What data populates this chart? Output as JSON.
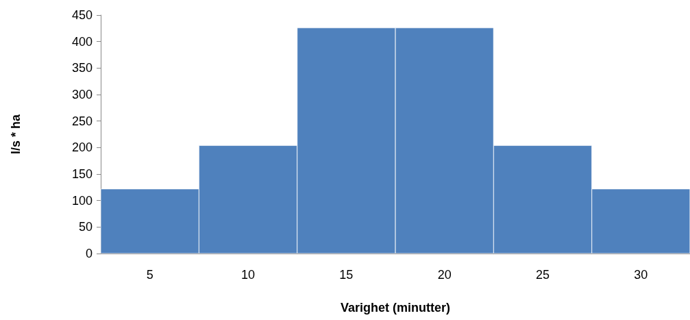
{
  "chart_data": {
    "type": "bar",
    "xlabel": "Varighet (minutter)",
    "ylabel": "l/s * ha",
    "categories": [
      "5",
      "10",
      "15",
      "20",
      "25",
      "30"
    ],
    "values": [
      122,
      204,
      426,
      426,
      204,
      122
    ],
    "color": "#4f81bd",
    "ylim": [
      0,
      450
    ],
    "yticks": [
      0,
      50,
      100,
      150,
      200,
      250,
      300,
      350,
      400,
      450
    ],
    "grid": false
  }
}
